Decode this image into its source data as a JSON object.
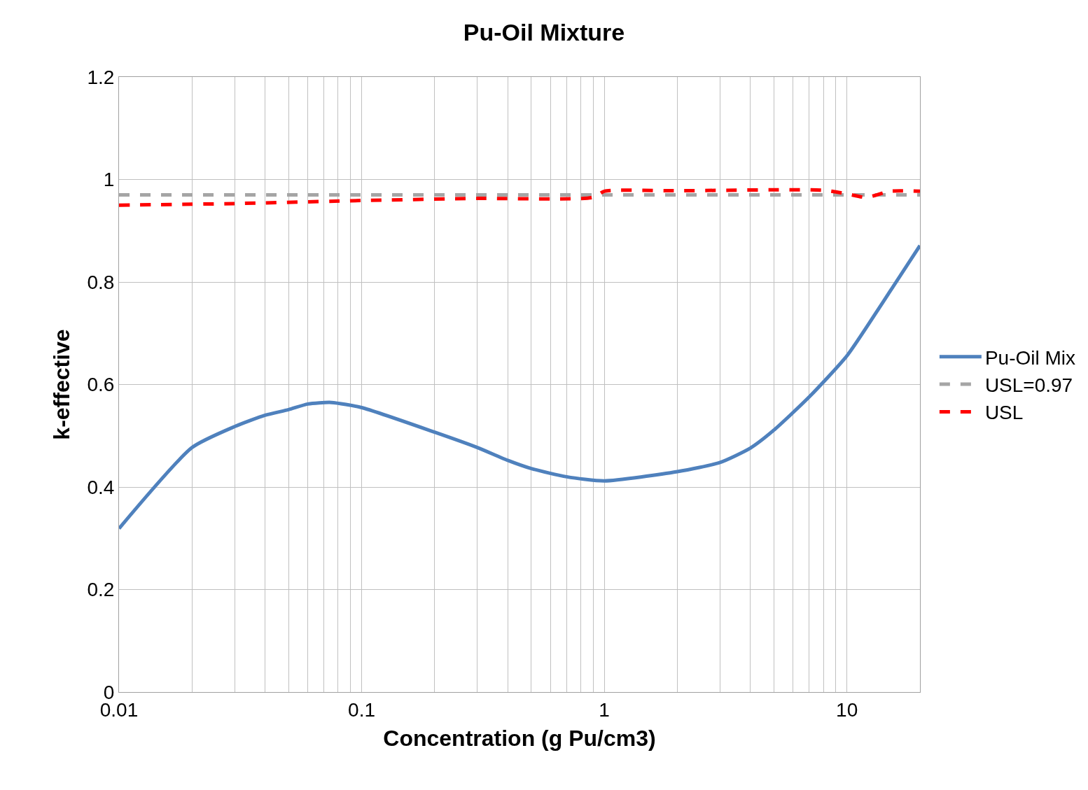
{
  "chart_data": {
    "type": "line",
    "title": "Pu-Oil Mixture",
    "xlabel": "Concentration (g Pu/cm3)",
    "ylabel": "k-effective",
    "log": "x",
    "xlim": [
      0.01,
      20
    ],
    "xticks": [
      0.01,
      0.1,
      1,
      10
    ],
    "ylim": [
      0,
      1.2
    ],
    "yticks": [
      0,
      0.2,
      0.4,
      0.6,
      0.8,
      1,
      1.2
    ],
    "grid": true,
    "legend": "right",
    "marker": "none",
    "series": [
      {
        "name": "Pu-Oil Mix",
        "color": "#4f81bd",
        "line_style": "solid",
        "x": [
          0.01,
          0.02,
          0.03,
          0.04,
          0.05,
          0.06,
          0.075,
          0.1,
          0.2,
          0.3,
          0.4,
          0.5,
          0.7,
          1,
          2,
          3,
          4,
          5,
          7,
          10,
          14,
          20
        ],
        "values": [
          0.319,
          0.477,
          0.518,
          0.54,
          0.551,
          0.562,
          0.565,
          0.555,
          0.507,
          0.477,
          0.452,
          0.436,
          0.42,
          0.412,
          0.43,
          0.448,
          0.476,
          0.511,
          0.576,
          0.656,
          0.759,
          0.871
        ]
      },
      {
        "name": "USL=0.97",
        "color": "#a5a5a5",
        "line_style": "dashed",
        "x": [
          0.01,
          20
        ],
        "values": [
          0.97,
          0.97
        ]
      },
      {
        "name": "USL",
        "color": "#ff0000",
        "line_style": "dashed",
        "x": [
          0.01,
          0.03,
          0.1,
          0.3,
          0.9,
          1,
          2,
          8,
          10,
          12,
          15,
          20
        ],
        "values": [
          0.95,
          0.953,
          0.959,
          0.963,
          0.965,
          0.977,
          0.978,
          0.979,
          0.972,
          0.965,
          0.977,
          0.977
        ]
      }
    ]
  }
}
